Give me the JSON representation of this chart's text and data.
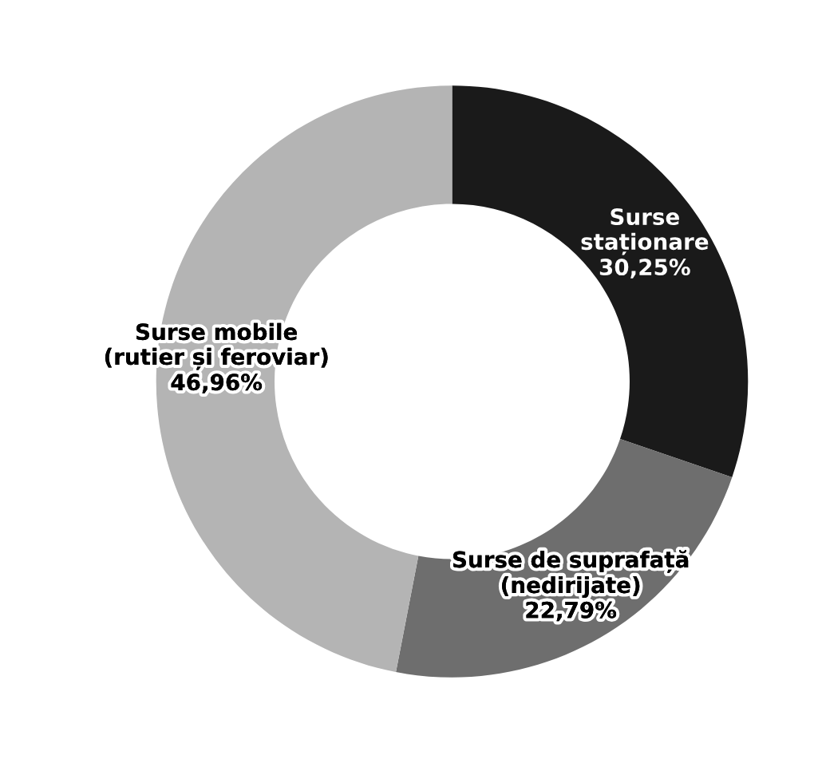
{
  "chart_data": {
    "type": "donut",
    "categories": [
      "Surse\nstaționare",
      "Surse de suprafață\n(nedirijate)",
      "Surse mobile\n(rutier și feroviar)"
    ],
    "values": [
      30.25,
      22.79,
      46.96
    ],
    "value_labels": [
      "30,25%",
      "22,79%",
      "46,96%"
    ],
    "colors": [
      "#1a1a1a",
      "#6e6e6e",
      "#b4b4b4"
    ],
    "legend": false
  }
}
